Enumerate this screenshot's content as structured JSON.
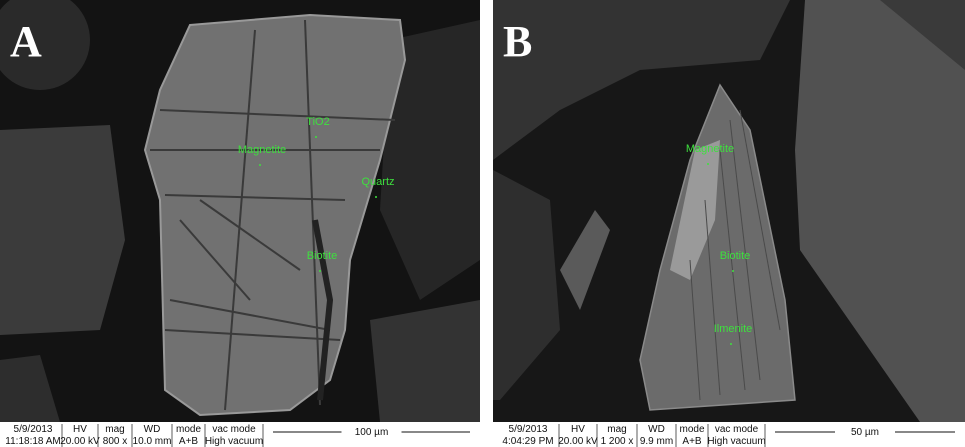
{
  "panels": [
    {
      "letter": "A",
      "labels": [
        "TiO2",
        "Magnetite",
        "Quartz",
        "Biotite"
      ],
      "footer": [
        {
          "head": "5/9/2013",
          "value": "11:18:18 AM"
        },
        {
          "head": "HV",
          "value": "20.00 kV"
        },
        {
          "head": "mag",
          "value": "800 x"
        },
        {
          "head": "WD",
          "value": "10.0 mm"
        },
        {
          "head": "mode",
          "value": "A+B"
        },
        {
          "head": "vac mode",
          "value": "High vacuum"
        }
      ],
      "scale": "100 µm"
    },
    {
      "letter": "B",
      "labels": [
        "Magnetite",
        "Biotite",
        "Ilmenite"
      ],
      "footer": [
        {
          "head": "5/9/2013",
          "value": "4:04:29 PM"
        },
        {
          "head": "HV",
          "value": "20.00 kV"
        },
        {
          "head": "mag",
          "value": "1 200 x"
        },
        {
          "head": "WD",
          "value": "9.9 mm"
        },
        {
          "head": "mode",
          "value": "A+B"
        },
        {
          "head": "vac mode",
          "value": "High vacuum"
        }
      ],
      "scale": "50 µm"
    }
  ]
}
